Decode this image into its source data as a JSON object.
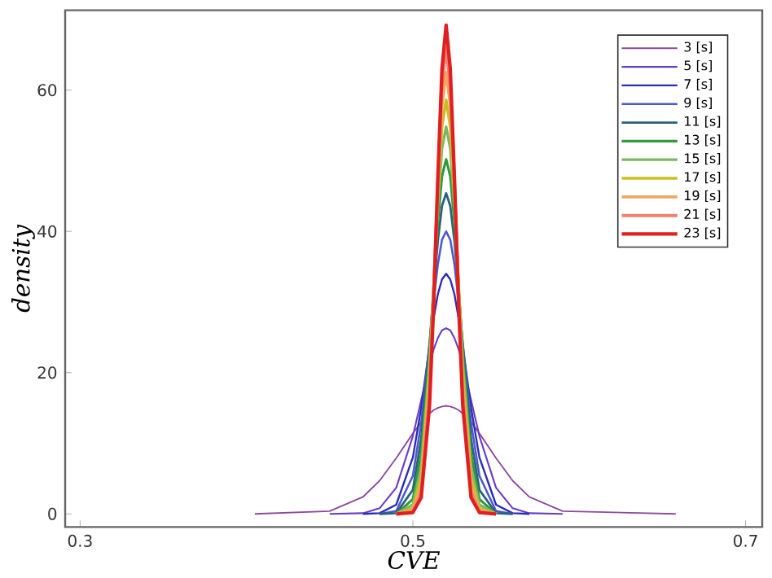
{
  "chart_data": {
    "type": "line",
    "xlabel": "CVE",
    "ylabel": "density",
    "xlim": [
      0.291,
      0.71
    ],
    "ylim": [
      -1.85,
      71.3
    ],
    "xticks": [
      0.3,
      0.5,
      0.7
    ],
    "yticks": [
      0,
      20,
      40,
      60
    ],
    "legend": "top right",
    "grid": false,
    "marker": "none",
    "line_style": "solid",
    "series": [
      {
        "name": "3 [s]",
        "color": "#8b4a9c",
        "x": [
          0.405,
          0.45,
          0.47,
          0.48,
          0.49,
          0.5,
          0.505,
          0.51,
          0.5125,
          0.515,
          0.5175,
          0.52,
          0.5225,
          0.525,
          0.5275,
          0.53,
          0.535,
          0.54,
          0.55,
          0.56,
          0.57,
          0.59,
          0.658
        ],
        "values": [
          0.0,
          0.4,
          2.4,
          4.7,
          7.9,
          11.4,
          13.0,
          14.2,
          14.7,
          15.0,
          15.2,
          15.3,
          15.2,
          15.0,
          14.7,
          14.2,
          13.0,
          11.4,
          7.9,
          4.7,
          2.4,
          0.4,
          0.0
        ]
      },
      {
        "name": "5 [s]",
        "color": "#6a3cc8",
        "x": [
          0.45,
          0.47,
          0.48,
          0.49,
          0.5,
          0.505,
          0.51,
          0.5125,
          0.515,
          0.5175,
          0.52,
          0.5225,
          0.525,
          0.5275,
          0.53,
          0.535,
          0.54,
          0.55,
          0.56,
          0.57,
          0.59
        ],
        "values": [
          0.0,
          0.1,
          0.8,
          3.7,
          11.0,
          16.1,
          21.2,
          23.3,
          24.9,
          26.0,
          26.3,
          26.0,
          24.9,
          23.3,
          21.2,
          16.1,
          11.0,
          3.7,
          0.8,
          0.1,
          0.0
        ]
      },
      {
        "name": "7 [s]",
        "color": "#2a2ab8",
        "x": [
          0.47,
          0.48,
          0.49,
          0.5,
          0.505,
          0.51,
          0.5125,
          0.515,
          0.5175,
          0.52,
          0.5225,
          0.525,
          0.5275,
          0.53,
          0.535,
          0.54,
          0.55,
          0.56,
          0.57
        ],
        "values": [
          0.0,
          0.1,
          1.3,
          8.0,
          15.0,
          23.7,
          27.7,
          31.1,
          33.2,
          34.0,
          33.2,
          31.1,
          27.7,
          23.7,
          15.0,
          8.0,
          1.3,
          0.1,
          0.0
        ]
      },
      {
        "name": "9 [s]",
        "color": "#4a5ad0",
        "x": [
          0.48,
          0.49,
          0.5,
          0.505,
          0.51,
          0.5125,
          0.515,
          0.5175,
          0.52,
          0.5225,
          0.525,
          0.5275,
          0.53,
          0.535,
          0.54,
          0.55,
          0.56
        ],
        "values": [
          0.0,
          0.4,
          5.4,
          12.9,
          24.2,
          30.1,
          35.3,
          38.8,
          40.0,
          38.8,
          35.3,
          30.1,
          24.2,
          12.9,
          5.4,
          0.4,
          0.0
        ]
      },
      {
        "name": "11 [s]",
        "color": "#2a6080",
        "x": [
          0.48,
          0.49,
          0.5,
          0.505,
          0.51,
          0.5125,
          0.515,
          0.5175,
          0.52,
          0.5225,
          0.525,
          0.5275,
          0.53,
          0.535,
          0.54,
          0.55,
          0.56
        ],
        "values": [
          0.0,
          0.1,
          3.4,
          10.6,
          23.8,
          31.6,
          38.6,
          43.6,
          45.4,
          43.6,
          38.6,
          31.6,
          23.8,
          10.6,
          3.4,
          0.1,
          0.0
        ]
      },
      {
        "name": "13 [s]",
        "color": "#2e9a3a",
        "x": [
          0.49,
          0.5,
          0.505,
          0.51,
          0.5125,
          0.515,
          0.5175,
          0.52,
          0.5225,
          0.525,
          0.5275,
          0.53,
          0.535,
          0.54,
          0.55
        ],
        "values": [
          0.0,
          2.1,
          8.5,
          22.8,
          32.2,
          41.2,
          47.8,
          50.2,
          47.8,
          41.2,
          32.2,
          22.8,
          8.5,
          2.1,
          0.0
        ]
      },
      {
        "name": "15 [s]",
        "color": "#7ab868",
        "x": [
          0.49,
          0.5,
          0.505,
          0.51,
          0.5125,
          0.515,
          0.5175,
          0.52,
          0.5225,
          0.525,
          0.5275,
          0.53,
          0.535,
          0.54,
          0.55
        ],
        "values": [
          0.0,
          1.3,
          6.6,
          21.3,
          32.2,
          43.3,
          51.7,
          54.8,
          51.7,
          43.3,
          32.2,
          21.3,
          6.6,
          1.3,
          0.0
        ]
      },
      {
        "name": "17 [s]",
        "color": "#c8c020",
        "x": [
          0.49,
          0.5,
          0.505,
          0.51,
          0.5125,
          0.515,
          0.5175,
          0.52,
          0.5225,
          0.525,
          0.5275,
          0.53,
          0.535,
          0.54,
          0.55
        ],
        "values": [
          0.0,
          0.8,
          5.2,
          19.9,
          32.0,
          44.7,
          54.8,
          58.6,
          54.8,
          44.7,
          32.0,
          19.9,
          5.2,
          0.8,
          0.0
        ]
      },
      {
        "name": "19 [s]",
        "color": "#f0a860",
        "x": [
          0.49,
          0.5,
          0.505,
          0.51,
          0.5125,
          0.515,
          0.5175,
          0.52,
          0.5225,
          0.525,
          0.5275,
          0.53,
          0.535,
          0.54,
          0.55
        ],
        "values": [
          0.0,
          0.5,
          3.9,
          18.3,
          31.3,
          46.0,
          57.9,
          62.5,
          57.9,
          46.0,
          31.3,
          18.3,
          3.9,
          0.5,
          0.0
        ]
      },
      {
        "name": "21 [s]",
        "color": "#f08070",
        "x": [
          0.49,
          0.5,
          0.505,
          0.51,
          0.5125,
          0.515,
          0.5175,
          0.52,
          0.5225,
          0.525,
          0.5275,
          0.53,
          0.535,
          0.54,
          0.55
        ],
        "values": [
          0.0,
          0.3,
          3.0,
          16.8,
          30.6,
          46.8,
          60.6,
          66.0,
          60.6,
          46.8,
          30.6,
          16.8,
          3.0,
          0.3,
          0.0
        ]
      },
      {
        "name": "23 [s]",
        "color": "#e02020",
        "x": [
          0.49,
          0.5,
          0.505,
          0.51,
          0.5125,
          0.515,
          0.5175,
          0.52,
          0.5225,
          0.525,
          0.5275,
          0.53,
          0.535,
          0.54,
          0.55
        ],
        "values": [
          0.0,
          0.2,
          2.3,
          15.3,
          29.6,
          47.5,
          63.0,
          69.2,
          63.0,
          47.5,
          29.6,
          15.3,
          2.3,
          0.2,
          0.0
        ]
      }
    ]
  }
}
